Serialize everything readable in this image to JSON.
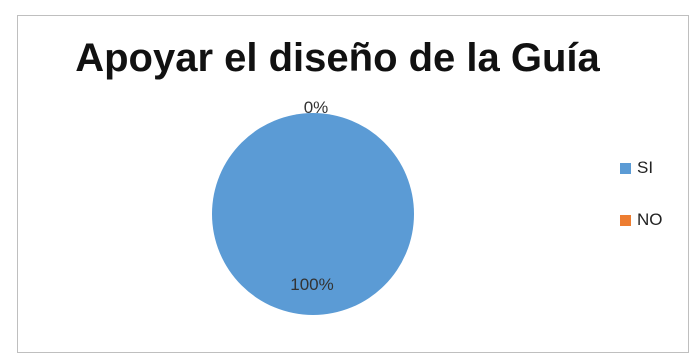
{
  "chart_data": {
    "type": "pie",
    "title": "Apoyar el diseño de la Guía",
    "categories": [
      "SI",
      "NO"
    ],
    "values": [
      100,
      0
    ],
    "data_labels": [
      "100%",
      "0%"
    ],
    "colors": [
      "#5b9bd5",
      "#ed7d31"
    ],
    "legend_placement": "right"
  }
}
